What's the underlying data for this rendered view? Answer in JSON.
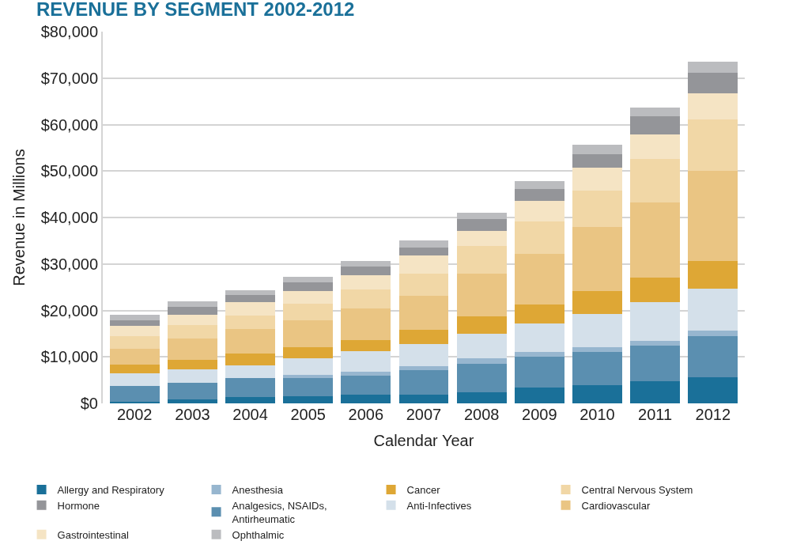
{
  "chart_data": {
    "type": "bar",
    "stacked": true,
    "title": "REVENUE BY SEGMENT 2002-2012",
    "xlabel": "Calendar Year",
    "ylabel": "Revenue in Millions",
    "categories": [
      "2002",
      "2003",
      "2004",
      "2005",
      "2006",
      "2007",
      "2008",
      "2009",
      "2010",
      "2011",
      "2012"
    ],
    "ylim": [
      0,
      80000
    ],
    "yticks": [
      {
        "value": 0,
        "label": "$0"
      },
      {
        "value": 10000,
        "label": "$10,000"
      },
      {
        "value": 20000,
        "label": "$20,000"
      },
      {
        "value": 30000,
        "label": "$30,000"
      },
      {
        "value": 40000,
        "label": "$40,000"
      },
      {
        "value": 50000,
        "label": "$50,000"
      },
      {
        "value": 60000,
        "label": "$60,000"
      },
      {
        "value": 70000,
        "label": "$70,000"
      },
      {
        "value": 80000,
        "label": "$80,000"
      }
    ],
    "grid": "y",
    "legend": "bottom",
    "series": [
      {
        "name": "Allergy and Respiratory",
        "color": "#1a7099",
        "values": [
          300,
          900,
          1300,
          1500,
          1900,
          1900,
          2400,
          3400,
          4000,
          4800,
          5600
        ]
      },
      {
        "name": "Analgesics, NSAIDs, Antirheumatic",
        "color": "#5b8fb0",
        "values": [
          3500,
          3500,
          4100,
          3900,
          4100,
          5300,
          6100,
          6700,
          7100,
          7600,
          8800
        ]
      },
      {
        "name": "Anesthesia",
        "color": "#97b6cf",
        "values": [
          0,
          0,
          0,
          800,
          800,
          800,
          1200,
          1000,
          1000,
          1000,
          1200
        ]
      },
      {
        "name": "Anti-Infectives",
        "color": "#d4e0ea",
        "values": [
          2700,
          2900,
          2700,
          3500,
          4500,
          4700,
          5300,
          6100,
          7100,
          8400,
          9000
        ]
      },
      {
        "name": "Cancer",
        "color": "#dea735",
        "values": [
          1800,
          2000,
          2600,
          2400,
          2400,
          3100,
          3700,
          4100,
          4900,
          5300,
          6100
        ]
      },
      {
        "name": "Cardiovascular",
        "color": "#eac583",
        "values": [
          3500,
          4700,
          5300,
          5700,
          6700,
          7400,
          9200,
          10800,
          13900,
          16100,
          19400
        ]
      },
      {
        "name": "Central Nervous System",
        "color": "#f1d7a6",
        "values": [
          2700,
          2900,
          2900,
          3700,
          4100,
          4700,
          5900,
          7100,
          7800,
          9400,
          11000
        ]
      },
      {
        "name": "Gastrointestinal",
        "color": "#f5e4c4",
        "values": [
          2200,
          2200,
          2900,
          2700,
          3100,
          3900,
          3300,
          4300,
          4900,
          5300,
          5700
        ]
      },
      {
        "name": "Hormone",
        "color": "#949599",
        "values": [
          1200,
          1600,
          1600,
          1800,
          1800,
          1800,
          2600,
          2700,
          2900,
          3900,
          4300
        ]
      },
      {
        "name": "Ophthalmic",
        "color": "#bbbcbf",
        "values": [
          1200,
          1200,
          1000,
          1200,
          1200,
          1400,
          1400,
          1600,
          2000,
          1800,
          2400
        ]
      }
    ]
  }
}
